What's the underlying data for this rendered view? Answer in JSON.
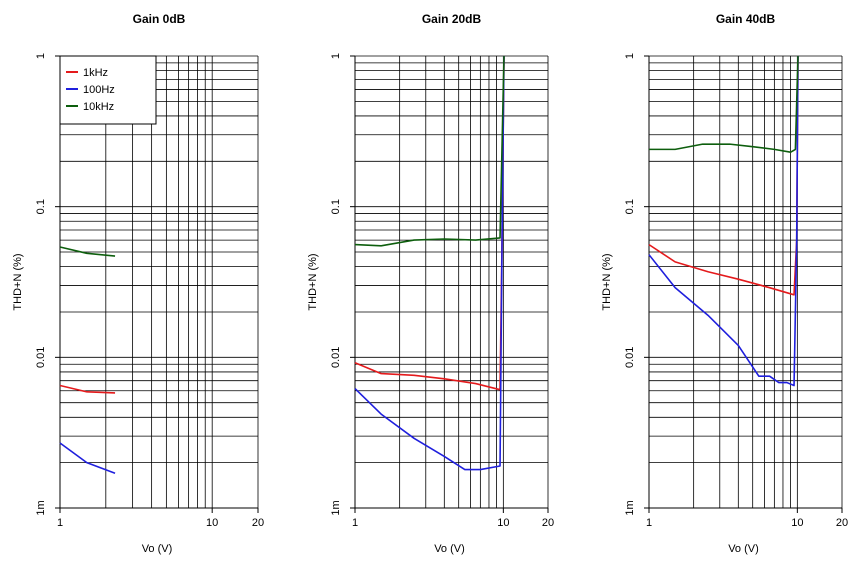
{
  "colors": {
    "1kHz": "#e41a1c",
    "100Hz": "#1f1fdd",
    "10kHz": "#0d5e0d",
    "grid": "#000000"
  },
  "chart_data": [
    {
      "type": "line",
      "title": "Gain 0dB",
      "xlabel": "Vo (V)",
      "ylabel": "THD+N (%)",
      "xscale": "log",
      "yscale": "log",
      "xlim": [
        1,
        20
      ],
      "ylim": [
        0.001,
        1
      ],
      "xticks": [
        {
          "v": 1,
          "label": "1"
        },
        {
          "v": 10,
          "label": "10"
        },
        {
          "v": 20,
          "label": "20"
        }
      ],
      "yticks": [
        {
          "v": 0.001,
          "label": "1m"
        },
        {
          "v": 0.01,
          "label": "0.01"
        },
        {
          "v": 0.1,
          "label": "0.1"
        },
        {
          "v": 1,
          "label": "1"
        }
      ],
      "grid": true,
      "legend": {
        "show": true,
        "position": "top-left",
        "entries": [
          "1kHz",
          "100Hz",
          "10kHz"
        ]
      },
      "series": [
        {
          "name": "1kHz",
          "x": [
            1,
            1.5,
            2.3
          ],
          "y": [
            0.0065,
            0.0059,
            0.0058
          ]
        },
        {
          "name": "100Hz",
          "x": [
            1,
            1.5,
            2.3
          ],
          "y": [
            0.0027,
            0.002,
            0.0017
          ]
        },
        {
          "name": "10kHz",
          "x": [
            1,
            1.5,
            2.3
          ],
          "y": [
            0.054,
            0.049,
            0.047
          ]
        }
      ]
    },
    {
      "type": "line",
      "title": "Gain 20dB",
      "xlabel": "Vo (V)",
      "ylabel": "THD+N (%)",
      "xscale": "log",
      "yscale": "log",
      "xlim": [
        1,
        20
      ],
      "ylim": [
        0.001,
        1
      ],
      "xticks": [
        {
          "v": 1,
          "label": "1"
        },
        {
          "v": 10,
          "label": "10"
        },
        {
          "v": 20,
          "label": "20"
        }
      ],
      "yticks": [
        {
          "v": 0.001,
          "label": "1m"
        },
        {
          "v": 0.01,
          "label": "0.01"
        },
        {
          "v": 0.1,
          "label": "0.1"
        },
        {
          "v": 1,
          "label": "1"
        }
      ],
      "grid": true,
      "legend": {
        "show": false
      },
      "series": [
        {
          "name": "1kHz",
          "x": [
            1,
            1.5,
            2.5,
            4,
            6.5,
            9.5,
            9.8,
            10.1
          ],
          "y": [
            0.0092,
            0.0078,
            0.0076,
            0.0072,
            0.0067,
            0.0061,
            0.06,
            1
          ]
        },
        {
          "name": "100Hz",
          "x": [
            1,
            1.5,
            2.5,
            4,
            5.5,
            7,
            9.5,
            9.8,
            10.1
          ],
          "y": [
            0.0062,
            0.0042,
            0.0029,
            0.0022,
            0.0018,
            0.0018,
            0.0019,
            0.06,
            1
          ]
        },
        {
          "name": "10kHz",
          "x": [
            1,
            1.5,
            2.5,
            4,
            6.5,
            9.5,
            10.1
          ],
          "y": [
            0.056,
            0.055,
            0.06,
            0.061,
            0.06,
            0.062,
            1
          ]
        }
      ]
    },
    {
      "type": "line",
      "title": "Gain 40dB",
      "xlabel": "Vo (V)",
      "ylabel": "THD+N (%)",
      "xscale": "log",
      "yscale": "log",
      "xlim": [
        1,
        20
      ],
      "ylim": [
        0.001,
        1
      ],
      "xticks": [
        {
          "v": 1,
          "label": "1"
        },
        {
          "v": 10,
          "label": "10"
        },
        {
          "v": 20,
          "label": "20"
        }
      ],
      "yticks": [
        {
          "v": 0.001,
          "label": "1m"
        },
        {
          "v": 0.01,
          "label": "0.01"
        },
        {
          "v": 0.1,
          "label": "0.1"
        },
        {
          "v": 1,
          "label": "1"
        }
      ],
      "grid": true,
      "legend": {
        "show": false
      },
      "series": [
        {
          "name": "1kHz",
          "x": [
            1,
            1.5,
            2.5,
            4,
            6.5,
            9.5,
            9.9,
            10.1
          ],
          "y": [
            0.056,
            0.043,
            0.037,
            0.033,
            0.029,
            0.026,
            0.06,
            1
          ]
        },
        {
          "name": "100Hz",
          "x": [
            1,
            1.5,
            2.5,
            4,
            5.5,
            6.5,
            7.5,
            8.5,
            9.5,
            9.9,
            10.1
          ],
          "y": [
            0.048,
            0.029,
            0.019,
            0.012,
            0.0075,
            0.0075,
            0.0068,
            0.0068,
            0.0065,
            0.06,
            1
          ]
        },
        {
          "name": "10kHz",
          "x": [
            1,
            1.5,
            2.3,
            3.5,
            5,
            7,
            9,
            9.7,
            10.1
          ],
          "y": [
            0.24,
            0.24,
            0.26,
            0.26,
            0.25,
            0.24,
            0.23,
            0.24,
            1
          ]
        }
      ]
    }
  ]
}
